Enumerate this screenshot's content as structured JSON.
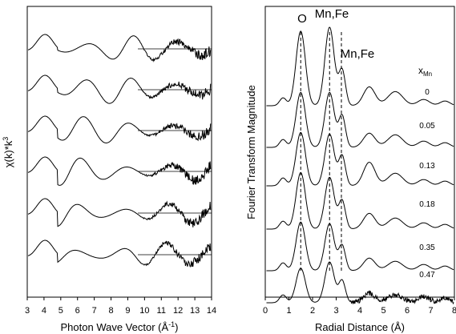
{
  "chart_data": [
    {
      "type": "line",
      "panel": "left",
      "xlabel": "Photon Wave Vector (Å⁻¹)",
      "ylabel": "χ(k)*k³",
      "xlim": [
        3,
        14
      ],
      "x_ticks": [
        "3",
        "4",
        "5",
        "6",
        "7",
        "8",
        "9",
        "10",
        "11",
        "12",
        "13",
        "14"
      ],
      "y_ticks_shown": false,
      "grid": false,
      "offset_baselines": true,
      "series_order": "top to bottom: x_Mn = 0, 0.05, 0.13, 0.18, 0.35, 0.47",
      "series_count": 6,
      "description_of_shape": "k-cubed weighted EXAFS oscillations; main maxima near k ≈ 4.0, 6.4, 7.6, 8.6, 9.7, 10.9 Å⁻¹; noise grows above k ≈ 11 Å⁻¹"
    },
    {
      "type": "line",
      "panel": "right",
      "xlabel": "Radial Distance (Å)",
      "ylabel": "Fourier Transform Magnitude",
      "xlim": [
        0,
        8
      ],
      "x_ticks": [
        "0",
        "1",
        "2",
        "3",
        "4",
        "5",
        "6",
        "7",
        "8"
      ],
      "y_ticks_shown": false,
      "grid": false,
      "legend_title": "x",
      "legend_title_sub": "Mn",
      "series": [
        {
          "name": "0"
        },
        {
          "name": "0.05"
        },
        {
          "name": "0.13"
        },
        {
          "name": "0.18"
        },
        {
          "name": "0.35"
        },
        {
          "name": "0.47"
        }
      ],
      "annotations": [
        {
          "text": "O",
          "x": 1.5
        },
        {
          "text": "Mn,Fe",
          "x": 2.72
        },
        {
          "text": "Mn,Fe",
          "x": 3.22
        }
      ],
      "dashed_lines_x": [
        1.5,
        2.72,
        3.22
      ]
    }
  ]
}
